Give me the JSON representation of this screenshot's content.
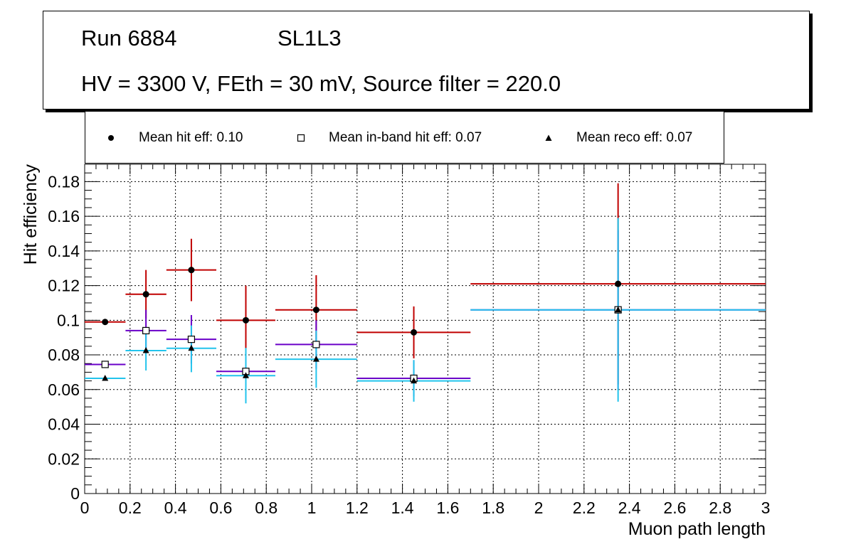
{
  "title": {
    "run_label": "Run 6884",
    "layer_label": "SL1L3",
    "conditions": "HV = 3300 V, FEth = 30 mV, Source filter = 220.0"
  },
  "legend": [
    {
      "label": "Mean hit  eff: 0.10",
      "marker": "circle"
    },
    {
      "label": "Mean in-band hit eff: 0.07",
      "marker": "open-square"
    },
    {
      "label": "Mean reco eff: 0.07",
      "marker": "triangle"
    }
  ],
  "chart_data": {
    "type": "scatter",
    "title": "Run 6884 SL1L3 HV = 3300 V, FEth = 30 mV, Source filter = 220.0",
    "xlabel": "Muon path length",
    "ylabel": "Hit efficiency",
    "xlim": [
      0,
      3
    ],
    "ylim": [
      0,
      0.19
    ],
    "grid": true,
    "xticks": [
      "0",
      "0.2",
      "0.4",
      "0.6",
      "0.8",
      "1",
      "1.2",
      "1.4",
      "1.6",
      "1.8",
      "2",
      "2.2",
      "2.4",
      "2.6",
      "2.8",
      "3"
    ],
    "yticks": [
      "0",
      "0.02",
      "0.04",
      "0.06",
      "0.08",
      "0.1",
      "0.12",
      "0.14",
      "0.16",
      "0.18"
    ],
    "series": [
      {
        "name": "Mean hit eff",
        "marker": "circle",
        "color": "#c00000",
        "points": [
          {
            "x": 0.09,
            "xlo": 0.0,
            "xhi": 0.18,
            "y": 0.099,
            "ylo": 0.099,
            "yhi": 0.099
          },
          {
            "x": 0.27,
            "xlo": 0.18,
            "xhi": 0.36,
            "y": 0.115,
            "ylo": 0.101,
            "yhi": 0.129
          },
          {
            "x": 0.47,
            "xlo": 0.36,
            "xhi": 0.58,
            "y": 0.129,
            "ylo": 0.111,
            "yhi": 0.147
          },
          {
            "x": 0.71,
            "xlo": 0.58,
            "xhi": 0.84,
            "y": 0.1,
            "ylo": 0.08,
            "yhi": 0.12
          },
          {
            "x": 1.02,
            "xlo": 0.84,
            "xhi": 1.2,
            "y": 0.106,
            "ylo": 0.086,
            "yhi": 0.126
          },
          {
            "x": 1.45,
            "xlo": 1.2,
            "xhi": 1.7,
            "y": 0.093,
            "ylo": 0.078,
            "yhi": 0.108
          },
          {
            "x": 2.35,
            "xlo": 1.7,
            "xhi": 3.0,
            "y": 0.121,
            "ylo": 0.063,
            "yhi": 0.179
          }
        ]
      },
      {
        "name": "Mean in-band hit eff",
        "marker": "open-square",
        "color": "#6a00c8",
        "points": [
          {
            "x": 0.09,
            "xlo": 0.0,
            "xhi": 0.18,
            "y": 0.0745,
            "ylo": 0.0745,
            "yhi": 0.0745
          },
          {
            "x": 0.27,
            "xlo": 0.18,
            "xhi": 0.36,
            "y": 0.094,
            "ylo": 0.082,
            "yhi": 0.106
          },
          {
            "x": 0.47,
            "xlo": 0.36,
            "xhi": 0.58,
            "y": 0.089,
            "ylo": 0.075,
            "yhi": 0.103
          },
          {
            "x": 0.71,
            "xlo": 0.58,
            "xhi": 0.84,
            "y": 0.0705,
            "ylo": 0.058,
            "yhi": 0.083
          },
          {
            "x": 1.02,
            "xlo": 0.84,
            "xhi": 1.2,
            "y": 0.086,
            "ylo": 0.072,
            "yhi": 0.1
          },
          {
            "x": 1.45,
            "xlo": 1.2,
            "xhi": 1.7,
            "y": 0.0665,
            "ylo": 0.056,
            "yhi": 0.077
          },
          {
            "x": 2.35,
            "xlo": 1.7,
            "xhi": 3.0,
            "y": 0.106,
            "ylo": 0.06,
            "yhi": 0.152
          }
        ]
      },
      {
        "name": "Mean reco eff",
        "marker": "triangle",
        "color": "#22c4ec",
        "points": [
          {
            "x": 0.09,
            "xlo": 0.0,
            "xhi": 0.18,
            "y": 0.0665,
            "ylo": 0.0665,
            "yhi": 0.0665
          },
          {
            "x": 0.27,
            "xlo": 0.18,
            "xhi": 0.36,
            "y": 0.0825,
            "ylo": 0.071,
            "yhi": 0.094
          },
          {
            "x": 0.47,
            "xlo": 0.36,
            "xhi": 0.58,
            "y": 0.0838,
            "ylo": 0.07,
            "yhi": 0.097
          },
          {
            "x": 0.71,
            "xlo": 0.58,
            "xhi": 0.84,
            "y": 0.068,
            "ylo": 0.052,
            "yhi": 0.084
          },
          {
            "x": 1.02,
            "xlo": 0.84,
            "xhi": 1.2,
            "y": 0.0775,
            "ylo": 0.061,
            "yhi": 0.094
          },
          {
            "x": 1.45,
            "xlo": 1.2,
            "xhi": 1.7,
            "y": 0.065,
            "ylo": 0.053,
            "yhi": 0.077
          },
          {
            "x": 2.35,
            "xlo": 1.7,
            "xhi": 3.0,
            "y": 0.106,
            "ylo": 0.053,
            "yhi": 0.159
          }
        ]
      }
    ]
  }
}
